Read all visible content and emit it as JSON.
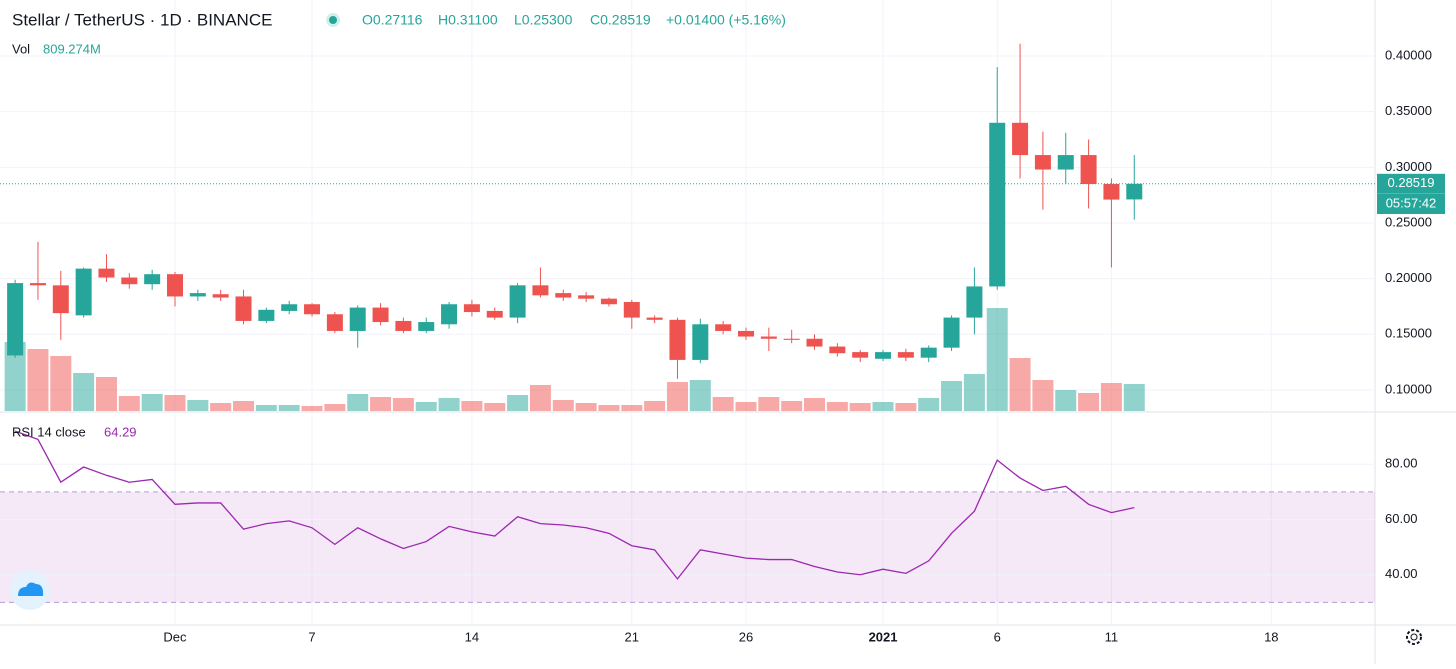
{
  "header": {
    "title": "Stellar / TetherUS · 1D · BINANCE",
    "ohlc": [
      "O0.27116",
      "H0.31100",
      "L0.25300",
      "C0.28519",
      "+0.01400 (+5.16%)"
    ],
    "countdown": "05:57:42"
  },
  "chart_data": [
    {
      "type": "candlestick",
      "up_color": "#26a69a",
      "down_color": "#ef5350",
      "x": [
        0,
        1,
        2,
        3,
        4,
        5,
        6,
        7,
        8,
        9,
        10,
        11,
        12,
        13,
        14,
        15,
        16,
        17,
        18,
        19,
        20,
        21,
        22,
        23,
        24,
        25,
        26,
        27,
        28,
        29,
        30,
        31,
        32,
        33,
        34,
        35,
        36,
        37,
        38,
        39,
        40,
        41,
        42,
        43,
        44,
        45,
        46,
        47,
        48,
        49
      ],
      "open": [
        0.131,
        0.196,
        0.194,
        0.167,
        0.209,
        0.201,
        0.195,
        0.204,
        0.184,
        0.186,
        0.184,
        0.162,
        0.171,
        0.177,
        0.168,
        0.153,
        0.174,
        0.162,
        0.153,
        0.159,
        0.177,
        0.171,
        0.165,
        0.194,
        0.187,
        0.185,
        0.182,
        0.179,
        0.165,
        0.163,
        0.127,
        0.159,
        0.153,
        0.148,
        0.146,
        0.146,
        0.139,
        0.134,
        0.128,
        0.134,
        0.129,
        0.138,
        0.165,
        0.193,
        0.34,
        0.311,
        0.298,
        0.311,
        0.285,
        0.27116
      ],
      "high": [
        0.199,
        0.233,
        0.207,
        0.21,
        0.222,
        0.205,
        0.208,
        0.206,
        0.19,
        0.19,
        0.19,
        0.174,
        0.18,
        0.178,
        0.17,
        0.176,
        0.178,
        0.165,
        0.165,
        0.179,
        0.181,
        0.174,
        0.196,
        0.21,
        0.19,
        0.188,
        0.183,
        0.181,
        0.167,
        0.165,
        0.164,
        0.162,
        0.156,
        0.156,
        0.154,
        0.15,
        0.142,
        0.136,
        0.136,
        0.137,
        0.14,
        0.167,
        0.21,
        0.39,
        0.411,
        0.332,
        0.331,
        0.325,
        0.29,
        0.311
      ],
      "low": [
        0.129,
        0.181,
        0.145,
        0.165,
        0.197,
        0.191,
        0.19,
        0.175,
        0.18,
        0.18,
        0.159,
        0.16,
        0.168,
        0.166,
        0.151,
        0.138,
        0.158,
        0.151,
        0.151,
        0.155,
        0.166,
        0.163,
        0.16,
        0.183,
        0.18,
        0.179,
        0.175,
        0.155,
        0.16,
        0.11,
        0.124,
        0.15,
        0.145,
        0.135,
        0.142,
        0.136,
        0.13,
        0.125,
        0.126,
        0.126,
        0.125,
        0.135,
        0.15,
        0.19,
        0.29,
        0.262,
        0.285,
        0.263,
        0.21,
        0.253
      ],
      "close": [
        0.196,
        0.194,
        0.169,
        0.209,
        0.201,
        0.195,
        0.204,
        0.184,
        0.187,
        0.183,
        0.162,
        0.172,
        0.177,
        0.168,
        0.153,
        0.174,
        0.161,
        0.153,
        0.161,
        0.177,
        0.17,
        0.165,
        0.194,
        0.185,
        0.183,
        0.182,
        0.177,
        0.165,
        0.163,
        0.127,
        0.159,
        0.153,
        0.148,
        0.146,
        0.145,
        0.139,
        0.133,
        0.129,
        0.134,
        0.129,
        0.138,
        0.165,
        0.193,
        0.34,
        0.311,
        0.298,
        0.311,
        0.285,
        0.271,
        0.28519
      ],
      "xlim": [
        -0.662,
        59.54
      ],
      "xticks": [
        {
          "value": 7,
          "label": "Dec"
        },
        {
          "value": 13,
          "label": "7"
        },
        {
          "value": 20,
          "label": "14"
        },
        {
          "value": 27,
          "label": "21"
        },
        {
          "value": 32,
          "label": "26"
        },
        {
          "value": 38,
          "label": "2021"
        },
        {
          "value": 43,
          "label": "6"
        },
        {
          "value": 48,
          "label": "11"
        },
        {
          "value": 55,
          "label": "18"
        }
      ],
      "ylim": [
        0.0811,
        0.4503
      ],
      "yticks": [
        {
          "value": 0.1,
          "label": "0.10000"
        },
        {
          "value": 0.15,
          "label": "0.15000"
        },
        {
          "value": 0.2,
          "label": "0.20000"
        },
        {
          "value": 0.25,
          "label": "0.25000"
        },
        {
          "value": 0.3,
          "label": "0.30000"
        },
        {
          "value": 0.35,
          "label": "0.35000"
        },
        {
          "value": 0.4,
          "label": "0.40000"
        }
      ],
      "grid": true
    },
    {
      "type": "volume",
      "name": "Vol",
      "values": [
        2070,
        1860,
        1650,
        1140,
        1020,
        450,
        510,
        480,
        330,
        240,
        300,
        180,
        180,
        150,
        210,
        510,
        420,
        390,
        270,
        390,
        300,
        240,
        480,
        780,
        330,
        240,
        180,
        180,
        300,
        870,
        930,
        420,
        270,
        420,
        300,
        390,
        270,
        240,
        270,
        240,
        390,
        900,
        1110,
        3090,
        1590,
        930,
        630,
        540,
        840,
        809.274
      ],
      "value_labels": [
        null,
        null,
        null,
        null,
        null,
        null,
        null,
        null,
        null,
        null,
        null,
        null,
        null,
        null,
        null,
        null,
        null,
        null,
        null,
        null,
        null,
        null,
        null,
        null,
        null,
        null,
        null,
        null,
        null,
        null,
        null,
        null,
        null,
        null,
        null,
        null,
        null,
        null,
        null,
        null,
        null,
        null,
        null,
        null,
        null,
        null,
        null,
        null,
        null,
        "809.274M"
      ]
    },
    {
      "type": "line",
      "name": "RSI 14 close",
      "color": "#9c27b0",
      "values": [
        92,
        89,
        73.5,
        79,
        76,
        73.5,
        74.5,
        65.5,
        66,
        66,
        56.5,
        58.5,
        59.5,
        57,
        51,
        57,
        53,
        49.5,
        52,
        57.5,
        55.5,
        54,
        61,
        58.5,
        58,
        57,
        55,
        50.5,
        49,
        38.5,
        49,
        47.5,
        46,
        45.5,
        45.5,
        43,
        41,
        40,
        42,
        40.5,
        45,
        55,
        63,
        81.5,
        75,
        70.5,
        72,
        65.5,
        62.5,
        64.29
      ],
      "ylim": [
        21.8,
        98.56
      ],
      "yticks": [
        {
          "value": 40,
          "label": "40.00"
        },
        {
          "value": 60,
          "label": "60.00"
        },
        {
          "value": 80,
          "label": "80.00"
        }
      ],
      "band": [
        30,
        70
      ]
    }
  ]
}
